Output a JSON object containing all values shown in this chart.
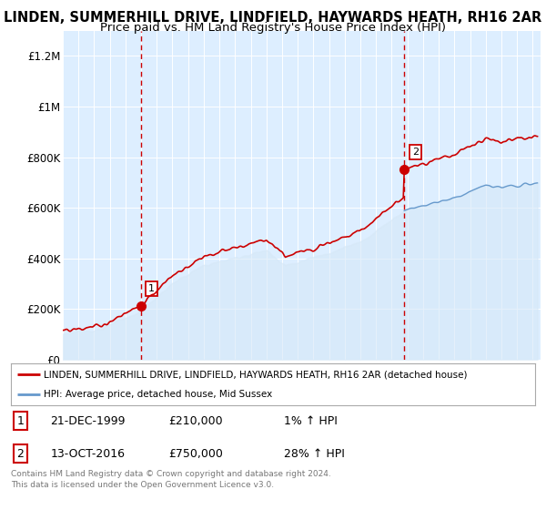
{
  "title": "LINDEN, SUMMERHILL DRIVE, LINDFIELD, HAYWARDS HEATH, RH16 2AR",
  "subtitle": "Price paid vs. HM Land Registry's House Price Index (HPI)",
  "title_fontsize": 10.5,
  "subtitle_fontsize": 9.5,
  "bg_color": "#ddeeff",
  "line_color_red": "#cc0000",
  "line_color_blue": "#6699cc",
  "fill_color_blue": "#d6e8f7",
  "annotation1_date": "21-DEC-1999",
  "annotation1_price": "£210,000",
  "annotation1_hpi": "1% ↑ HPI",
  "annotation2_date": "13-OCT-2016",
  "annotation2_price": "£750,000",
  "annotation2_hpi": "28% ↑ HPI",
  "legend_label1": "LINDEN, SUMMERHILL DRIVE, LINDFIELD, HAYWARDS HEATH, RH16 2AR (detached house)",
  "legend_label2": "HPI: Average price, detached house, Mid Sussex",
  "footer": "Contains HM Land Registry data © Crown copyright and database right 2024.\nThis data is licensed under the Open Government Licence v3.0.",
  "ylim": [
    0,
    1300000
  ],
  "yticks": [
    0,
    200000,
    400000,
    600000,
    800000,
    1000000,
    1200000
  ],
  "ytick_labels": [
    "£0",
    "£200K",
    "£400K",
    "£600K",
    "£800K",
    "£1M",
    "£1.2M"
  ],
  "marker1_x": 1999.97,
  "marker1_y": 210000,
  "marker2_x": 2016.79,
  "marker2_y": 750000,
  "vline1_x": 1999.97,
  "vline2_x": 2016.79,
  "xmin": 1995,
  "xmax": 2025.5
}
